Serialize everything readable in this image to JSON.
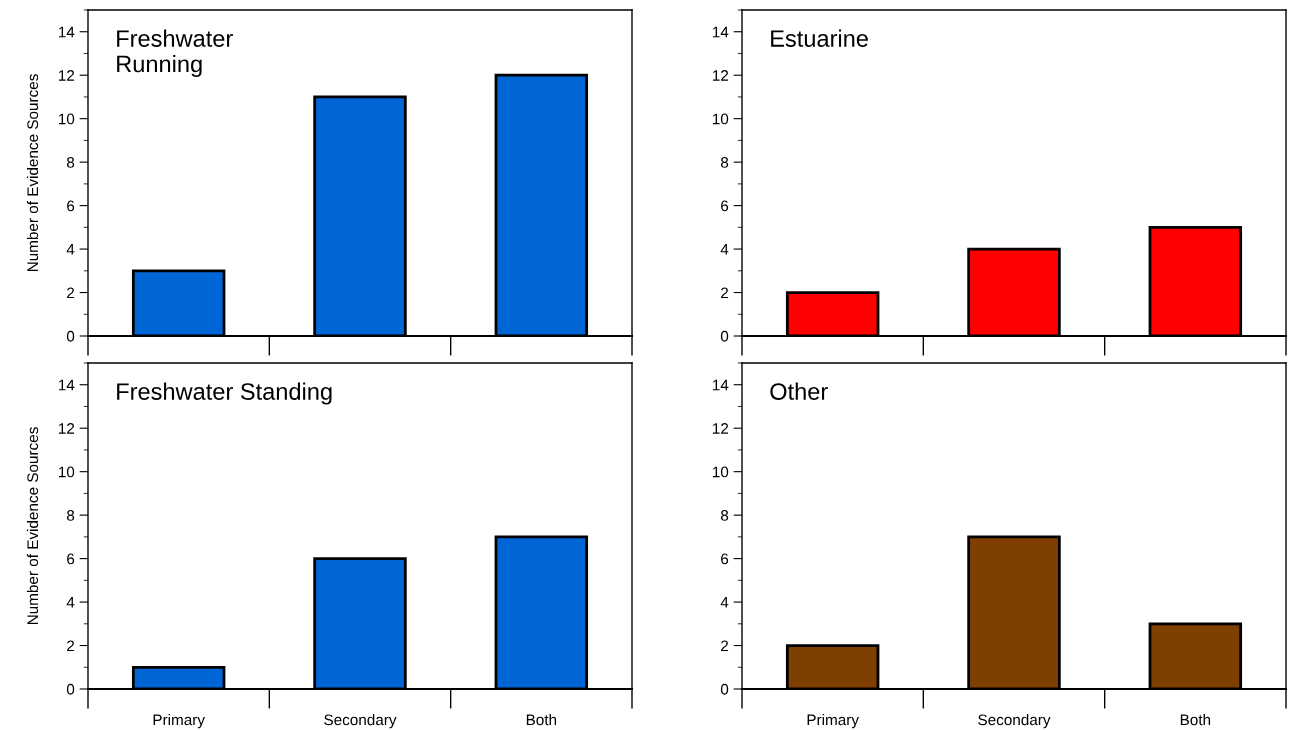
{
  "chart_data": [
    {
      "type": "bar",
      "title": "Freshwater\nRunning",
      "ylabel": "Number of Evidence Sources",
      "categories": [
        null,
        null,
        null
      ],
      "values": [
        3,
        11,
        12
      ],
      "color": "#0066d6",
      "ylim": [
        0,
        15
      ],
      "yticks": [
        0,
        2,
        4,
        6,
        8,
        10,
        12,
        14
      ],
      "grid": false
    },
    {
      "type": "bar",
      "title": "Estuarine",
      "categories": [
        null,
        null,
        null
      ],
      "values": [
        2,
        4,
        5
      ],
      "color": "#ff0000",
      "ylim": [
        0,
        15
      ],
      "yticks": [
        0,
        2,
        4,
        6,
        8,
        10,
        12,
        14
      ],
      "grid": false
    },
    {
      "type": "bar",
      "title": "Freshwater Standing",
      "ylabel": "Number of Evidence Sources",
      "categories": [
        "Primary",
        "Secondary",
        "Both"
      ],
      "values": [
        1,
        6,
        7
      ],
      "color": "#0066d6",
      "ylim": [
        0,
        15
      ],
      "yticks": [
        0,
        2,
        4,
        6,
        8,
        10,
        12,
        14
      ],
      "grid": false
    },
    {
      "type": "bar",
      "title": "Other",
      "categories": [
        "Primary",
        "Secondary",
        "Both"
      ],
      "values": [
        2,
        7,
        3
      ],
      "color": "#7f3f00",
      "ylim": [
        0,
        15
      ],
      "yticks": [
        0,
        2,
        4,
        6,
        8,
        10,
        12,
        14
      ],
      "grid": false
    }
  ]
}
